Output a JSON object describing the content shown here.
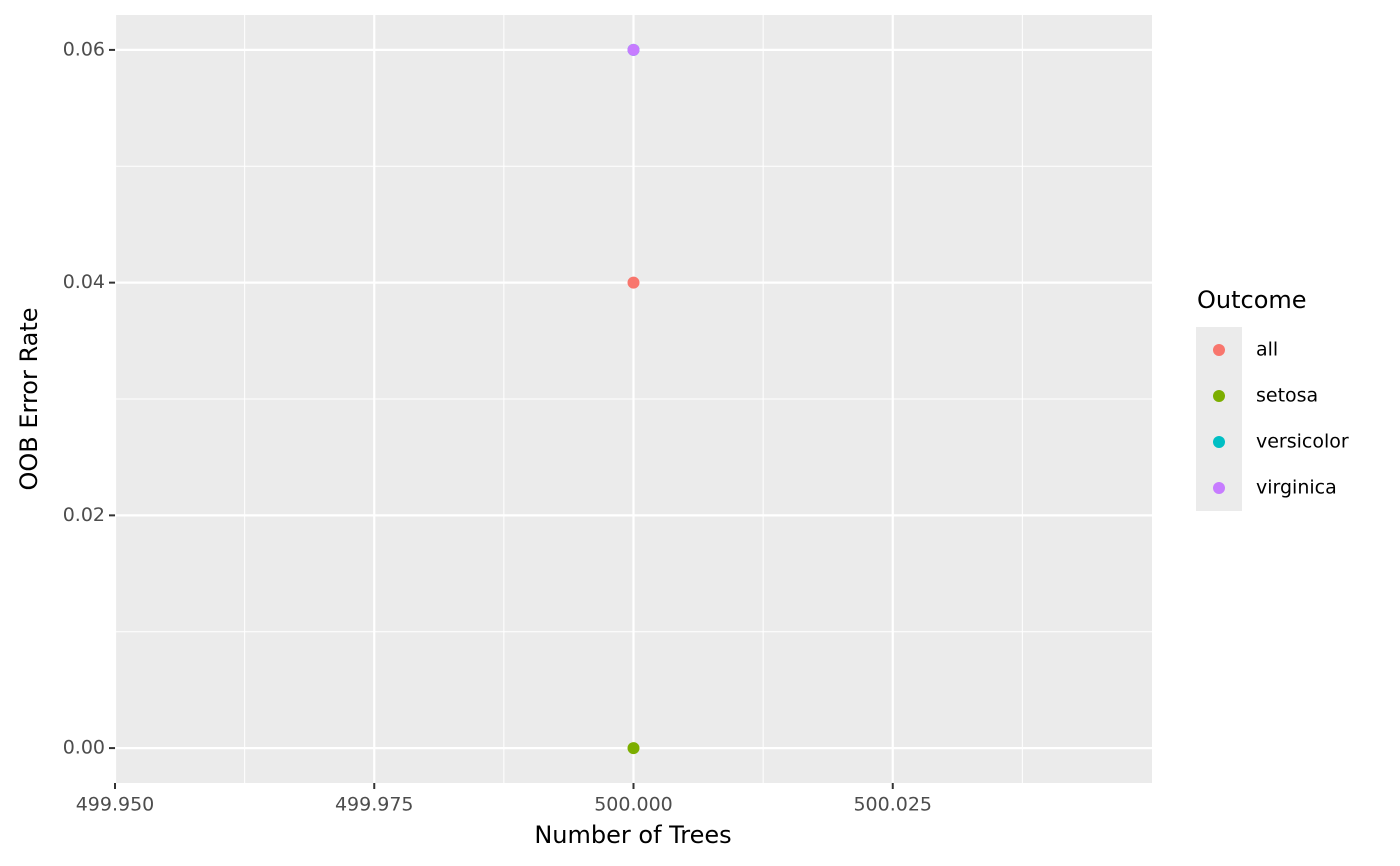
{
  "chart_data": {
    "type": "scatter",
    "x_label": "Number of Trees",
    "y_label": "OOB Error Rate",
    "legend_title": "Outcome",
    "legend_position": "right",
    "grid": true,
    "xlim": [
      499.95,
      500.05
    ],
    "ylim": [
      -0.003,
      0.063
    ],
    "xticks": [
      {
        "value": 499.95,
        "label": "499.950"
      },
      {
        "value": 499.975,
        "label": "499.975"
      },
      {
        "value": 500.0,
        "label": "500.000"
      },
      {
        "value": 500.025,
        "label": "500.025"
      }
    ],
    "yticks": [
      {
        "value": 0,
        "label": "0.00"
      },
      {
        "value": 0.02,
        "label": "0.02"
      },
      {
        "value": 0.04,
        "label": "0.04"
      },
      {
        "value": 0.06,
        "label": "0.06"
      }
    ],
    "series": [
      {
        "name": "all",
        "color": "#F8766D",
        "x": [
          500
        ],
        "values": [
          0.04
        ]
      },
      {
        "name": "setosa",
        "color": "#7CAE00",
        "x": [
          500
        ],
        "values": [
          0
        ]
      },
      {
        "name": "versicolor",
        "color": "#00BFC4",
        "x": [
          500
        ],
        "values": [
          0.06
        ]
      },
      {
        "name": "virginica",
        "color": "#C77CFF",
        "x": [
          500
        ],
        "values": [
          0.06
        ]
      }
    ]
  }
}
